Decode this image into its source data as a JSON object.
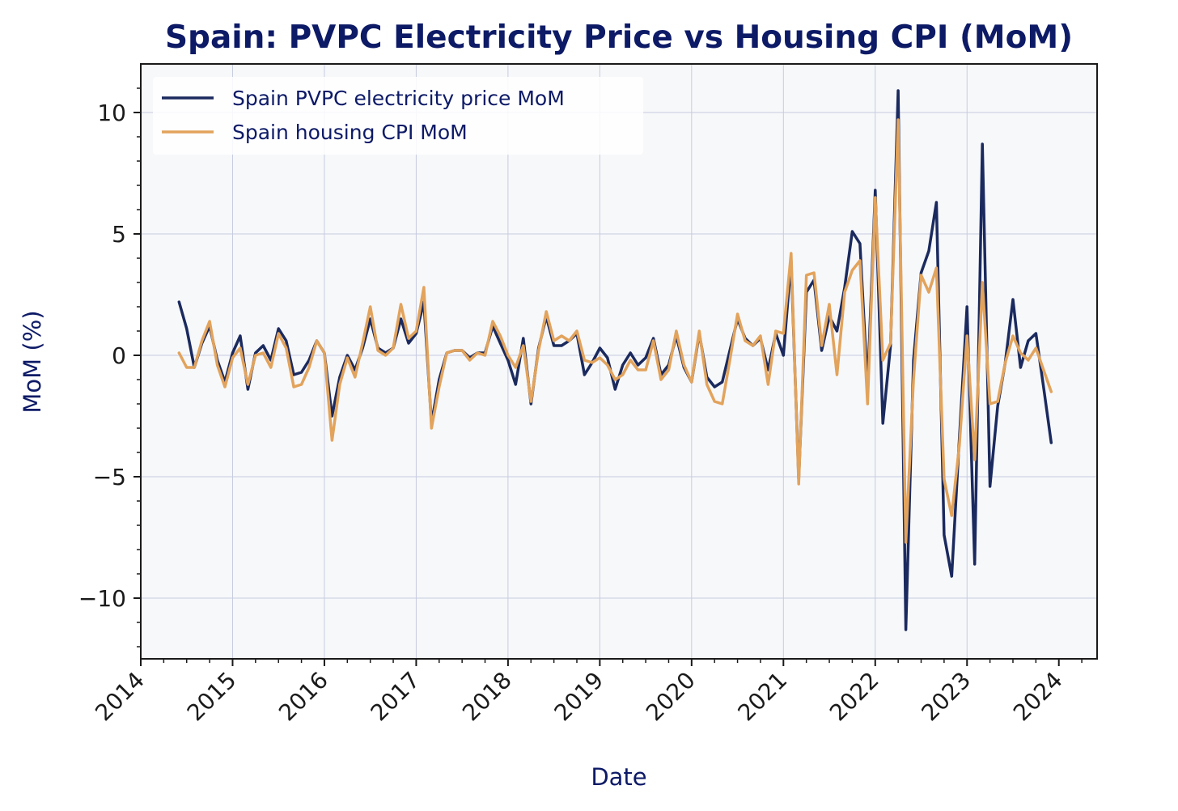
{
  "chart_data": {
    "type": "line",
    "title": "Spain: PVPC Electricity Price vs Housing CPI (MoM)",
    "xlabel": "Date",
    "ylabel": "MoM (%)",
    "xlim": [
      "2014-01-01",
      "2024-06-01"
    ],
    "ylim": [
      -12.5,
      12
    ],
    "x_ticks": [
      "2014",
      "2015",
      "2016",
      "2017",
      "2018",
      "2019",
      "2020",
      "2021",
      "2022",
      "2023",
      "2024"
    ],
    "y_ticks": [
      10,
      5,
      0,
      -5,
      -10
    ],
    "y_tick_labels": [
      "10",
      "5",
      "0",
      "−5",
      "−10"
    ],
    "grid": true,
    "legend_position": "top-left",
    "x_start": "2014-06",
    "series": [
      {
        "name": "Spain PVPC electricity price MoM",
        "color": "#1b2a5e",
        "values": [
          2.2,
          1.1,
          -0.5,
          0.5,
          1.2,
          -0.2,
          -1.1,
          0.1,
          0.8,
          -1.4,
          0.1,
          0.4,
          -0.2,
          1.1,
          0.6,
          -0.8,
          -0.7,
          -0.2,
          0.6,
          0.1,
          -2.5,
          -0.9,
          0.0,
          -0.6,
          0.3,
          1.5,
          0.3,
          0.1,
          0.3,
          1.5,
          0.5,
          0.9,
          2.2,
          -2.8,
          -1.0,
          0.1,
          0.2,
          0.2,
          -0.1,
          0.1,
          0.1,
          1.2,
          0.5,
          -0.2,
          -1.2,
          0.7,
          -2.0,
          0.3,
          1.6,
          0.4,
          0.4,
          0.6,
          0.9,
          -0.8,
          -0.3,
          0.3,
          -0.1,
          -1.4,
          -0.4,
          0.1,
          -0.4,
          -0.1,
          0.7,
          -0.8,
          -0.4,
          0.8,
          -0.5,
          -1.1,
          0.9,
          -0.9,
          -1.3,
          -1.1,
          0.2,
          1.5,
          0.7,
          0.4,
          0.7,
          -0.6,
          0.9,
          0.0,
          3.9,
          -5.1,
          2.6,
          3.1,
          0.2,
          1.6,
          1.0,
          2.8,
          5.1,
          4.6,
          -1.3,
          6.8,
          -2.8,
          0.4,
          10.9,
          -11.3,
          -0.2,
          3.4,
          4.3,
          6.3,
          -7.4,
          -9.1,
          -3.4,
          2.0,
          -8.6,
          8.7,
          -5.4,
          -2.1,
          -0.3,
          2.3,
          -0.5,
          0.6,
          0.9,
          -1.3,
          -3.6
        ]
      },
      {
        "name": "Spain housing CPI MoM",
        "color": "#e2a35c",
        "values": [
          0.1,
          -0.5,
          -0.5,
          0.6,
          1.4,
          -0.4,
          -1.3,
          -0.1,
          0.3,
          -1.2,
          0.0,
          0.1,
          -0.5,
          0.9,
          0.3,
          -1.3,
          -1.2,
          -0.5,
          0.6,
          0.1,
          -3.5,
          -1.2,
          -0.1,
          -0.9,
          0.5,
          2.0,
          0.2,
          0.0,
          0.3,
          2.1,
          0.7,
          1.0,
          2.8,
          -3.0,
          -1.3,
          0.1,
          0.2,
          0.2,
          -0.2,
          0.1,
          0.0,
          1.4,
          0.8,
          0.0,
          -0.5,
          0.4,
          -1.9,
          0.2,
          1.8,
          0.6,
          0.8,
          0.6,
          1.0,
          -0.2,
          -0.3,
          -0.1,
          -0.4,
          -1.0,
          -0.8,
          -0.2,
          -0.6,
          -0.6,
          0.6,
          -1.0,
          -0.6,
          1.0,
          -0.4,
          -1.1,
          1.0,
          -1.2,
          -1.9,
          -2.0,
          -0.2,
          1.7,
          0.6,
          0.4,
          0.8,
          -1.2,
          1.0,
          0.9,
          4.2,
          -5.3,
          3.3,
          3.4,
          0.4,
          2.1,
          -0.8,
          2.6,
          3.5,
          3.9,
          -2.0,
          6.5,
          -0.2,
          0.5,
          9.7,
          -7.7,
          -1.0,
          3.3,
          2.6,
          3.6,
          -5.1,
          -6.6,
          -3.7,
          0.8,
          -4.3,
          3.0,
          -2.0,
          -1.9,
          -0.3,
          0.8,
          0.1,
          -0.2,
          0.3,
          -0.6,
          -1.5
        ]
      }
    ]
  }
}
